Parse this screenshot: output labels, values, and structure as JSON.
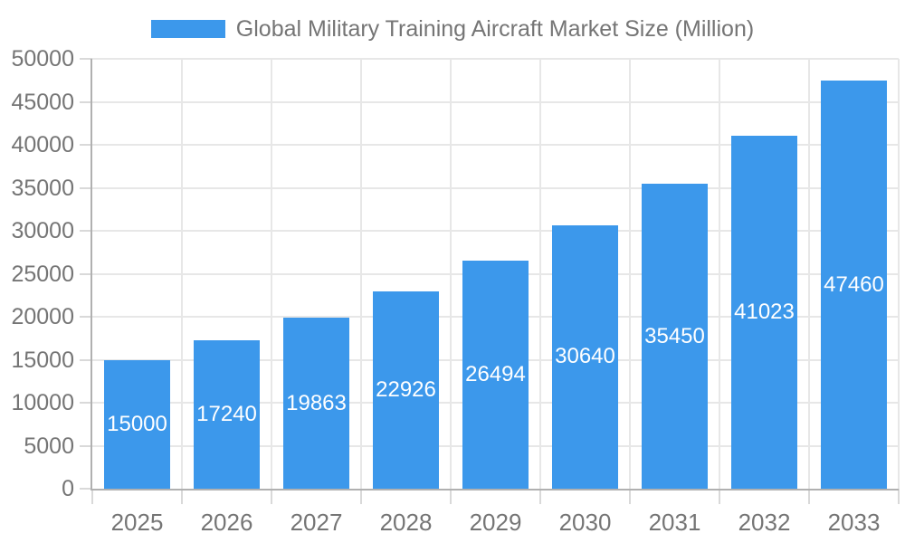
{
  "legend": {
    "label": "Global Military Training Aircraft Market Size (Million)"
  },
  "chart_data": {
    "type": "bar",
    "title": "Global Military Training Aircraft Market Size (Million)",
    "categories": [
      "2025",
      "2026",
      "2027",
      "2028",
      "2029",
      "2030",
      "2031",
      "2032",
      "2033"
    ],
    "values": [
      15000,
      17240,
      19863,
      22926,
      26494,
      30640,
      35450,
      41023,
      47460
    ],
    "xlabel": "",
    "ylabel": "",
    "ylim": [
      0,
      50000
    ],
    "ytick_step": 5000,
    "grid": true,
    "legend_position": "top-center",
    "value_labels": "inside-center",
    "colors": {
      "bar": "#3C98EB",
      "value_label": "#ffffff",
      "text": "#757575",
      "grid": "#e7e7e7",
      "axis": "#b0b0b0",
      "tick": "#d9d9d9",
      "background": "#ffffff"
    }
  }
}
